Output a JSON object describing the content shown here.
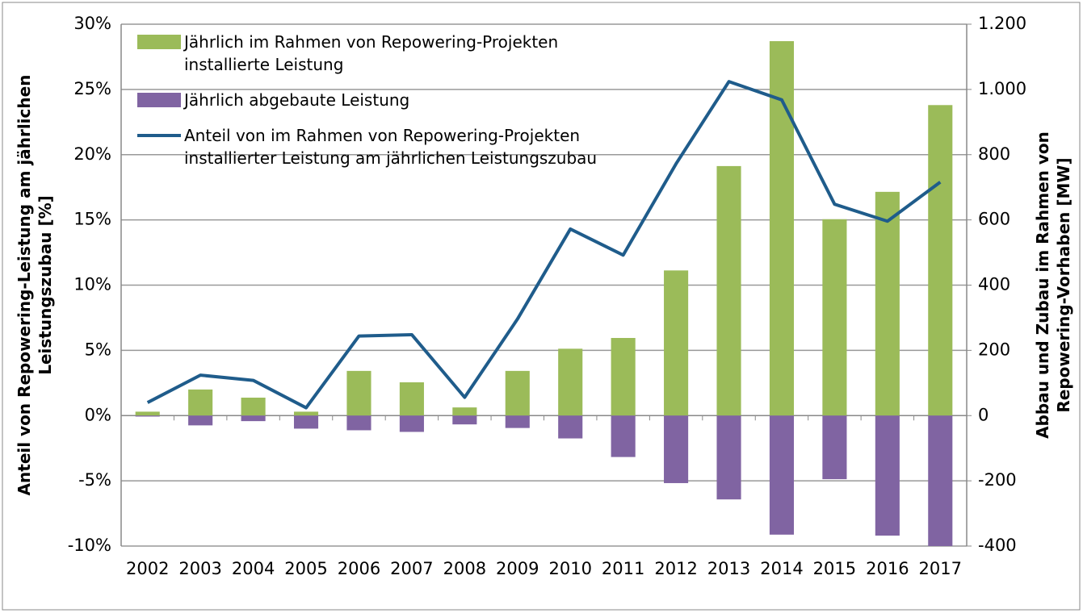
{
  "chart_data": {
    "type": "bar-line",
    "categories": [
      "2002",
      "2003",
      "2004",
      "2005",
      "2006",
      "2007",
      "2008",
      "2009",
      "2010",
      "2011",
      "2012",
      "2013",
      "2014",
      "2015",
      "2016",
      "2017"
    ],
    "ylabel": [
      "Anteil von Repowering-Leistung am jährlichen",
      "Leistungszubau [%]"
    ],
    "y2label": [
      "Abbau und Zubau im Rahmen von",
      "Repowering-Vorhaben [MW]"
    ],
    "ylim": [
      -10,
      30
    ],
    "yticks": [
      {
        "value": -10,
        "label": "-10%"
      },
      {
        "value": -5,
        "label": "-5%"
      },
      {
        "value": 0,
        "label": "0%"
      },
      {
        "value": 5,
        "label": "5%"
      },
      {
        "value": 10,
        "label": "10%"
      },
      {
        "value": 15,
        "label": "15%"
      },
      {
        "value": 20,
        "label": "20%"
      },
      {
        "value": 25,
        "label": "25%"
      },
      {
        "value": 30,
        "label": "30%"
      }
    ],
    "y2lim": [
      -400,
      1200
    ],
    "y2ticks": [
      -400,
      -200,
      0,
      200,
      400,
      600,
      800,
      {
        "value": 1000,
        "label": "1.000"
      },
      {
        "value": 1200,
        "label": "1.200"
      }
    ],
    "grid": true,
    "legend": "upper left",
    "series": [
      {
        "name": "Jährlich im Rahmen von Repowering-Projekten installierte Leistung",
        "type": "bar",
        "axis": "y2",
        "color": "#9bbb59",
        "values": [
          12,
          80,
          55,
          12,
          137,
          102,
          25,
          137,
          205,
          238,
          445,
          765,
          1148,
          602,
          686,
          952
        ]
      },
      {
        "name": "Jährlich abgebaute Leistung",
        "type": "bar",
        "axis": "y2",
        "color": "#8064a2",
        "values": [
          -3,
          -30,
          -17,
          -40,
          -45,
          -50,
          -27,
          -38,
          -70,
          -127,
          -207,
          -257,
          -365,
          -195,
          -368,
          -400
        ]
      },
      {
        "name": "Anteil von im Rahmen von Repowering-Projekten installierter Leistung am jährlichen Leistungszubau",
        "type": "line",
        "color": "#1f5c8b",
        "values": [
          1.0,
          3.1,
          2.7,
          0.6,
          6.1,
          6.2,
          1.4,
          7.4,
          14.3,
          12.3,
          19.3,
          25.6,
          24.2,
          16.2,
          14.9,
          17.9
        ]
      }
    ]
  }
}
